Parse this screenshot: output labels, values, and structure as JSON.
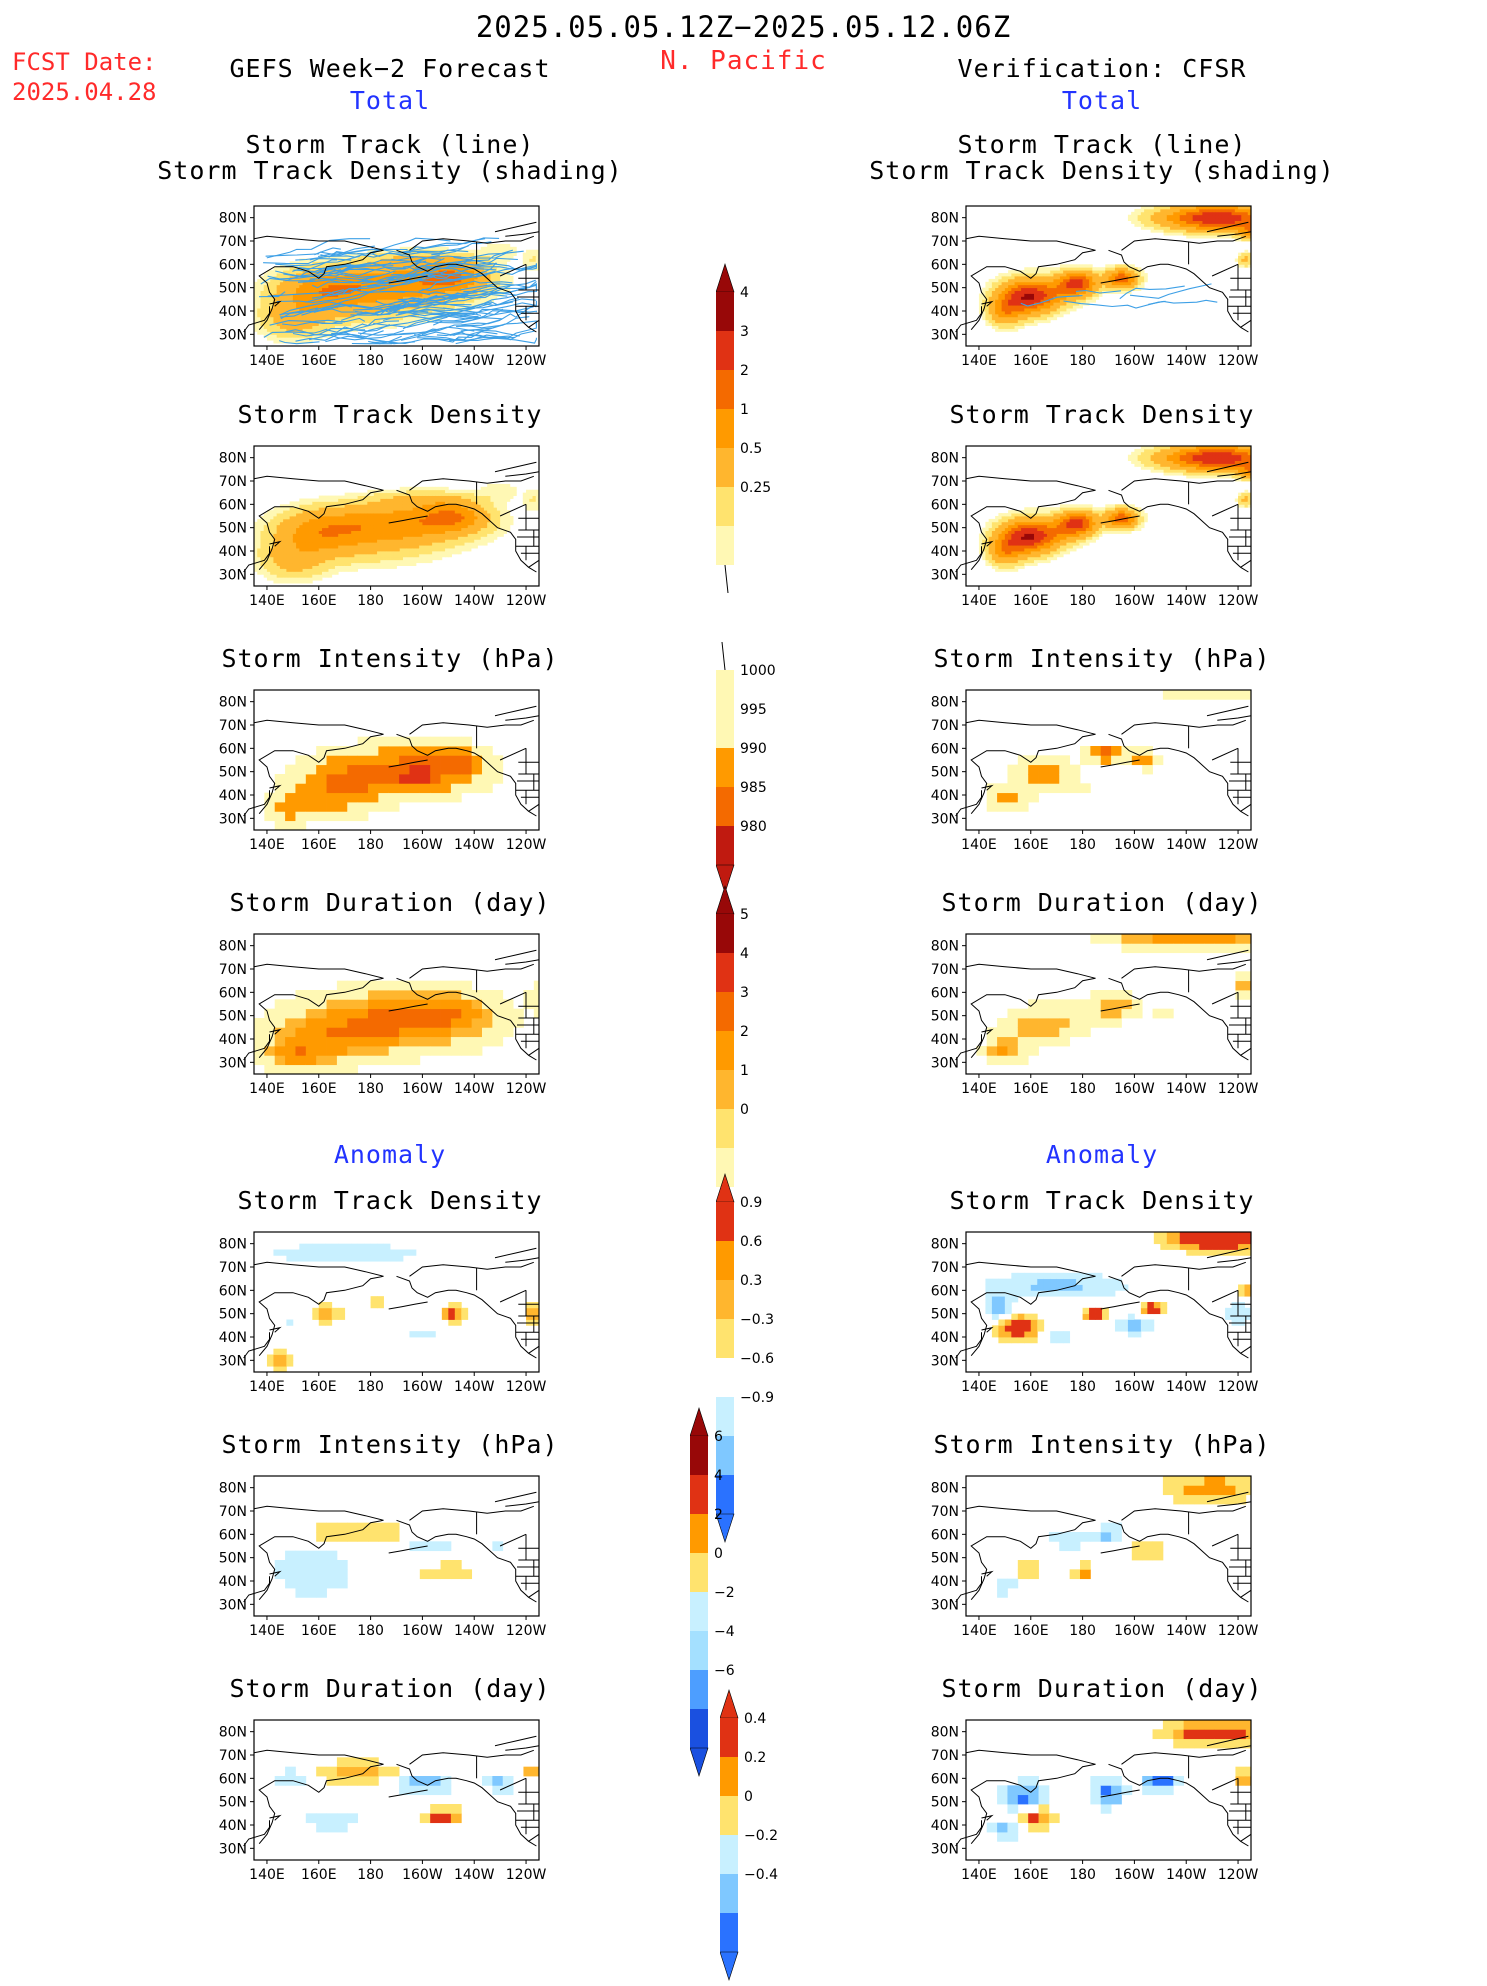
{
  "header": {
    "date_range": "2025.05.05.12Z−2025.05.12.06Z",
    "fcst_label": "FCST Date:",
    "fcst_date": "2025.04.28",
    "region": "N. Pacific",
    "left_title": "GEFS Week−2 Forecast",
    "right_title": "Verification: CFSR",
    "total_label": "Total",
    "anomaly_label": "Anomaly"
  },
  "panel_titles": {
    "track_line": "Storm Track (line)",
    "track_shading": "Storm Track Density (shading)",
    "density": "Storm Track Density",
    "intensity": "Storm Intensity (hPa)",
    "duration": "Storm Duration (day)"
  },
  "axes": {
    "lat_labels": [
      "80N",
      "70N",
      "60N",
      "50N",
      "40N",
      "30N"
    ],
    "lon_labels": [
      "140E",
      "160E",
      "180",
      "160W",
      "140W",
      "120W"
    ]
  },
  "colors": {
    "warm": [
      "#fff8b4",
      "#ffe36e",
      "#ffb62e",
      "#ff9a00",
      "#f46a00",
      "#e03214",
      "#c01a10",
      "#980808"
    ],
    "cool": [
      "#c8f0ff",
      "#a4e0ff",
      "#7fc8ff",
      "#4d9eff",
      "#2a72ff",
      "#1a50e0"
    ],
    "track_line": "#3ea0e6"
  },
  "colorbars": [
    {
      "id": "density_total",
      "labels": [
        "4",
        "3",
        "2",
        "1",
        "0.5",
        "0.25"
      ]
    },
    {
      "id": "intensity_total",
      "labels": [
        "1000",
        "995",
        "990",
        "985",
        "980"
      ]
    },
    {
      "id": "duration_total",
      "labels": [
        "5",
        "4",
        "3",
        "2",
        "1",
        "0"
      ]
    },
    {
      "id": "density_anom",
      "labels": [
        "0.9",
        "0.6",
        "0.3",
        "−0.3",
        "−0.6",
        "−0.9"
      ]
    },
    {
      "id": "intensity_anom",
      "labels": [
        "6",
        "4",
        "2",
        "0",
        "−2",
        "−4",
        "−6"
      ]
    },
    {
      "id": "duration_anom",
      "labels": [
        "0.4",
        "0.2",
        "0",
        "−0.2",
        "−0.4"
      ]
    }
  ]
}
